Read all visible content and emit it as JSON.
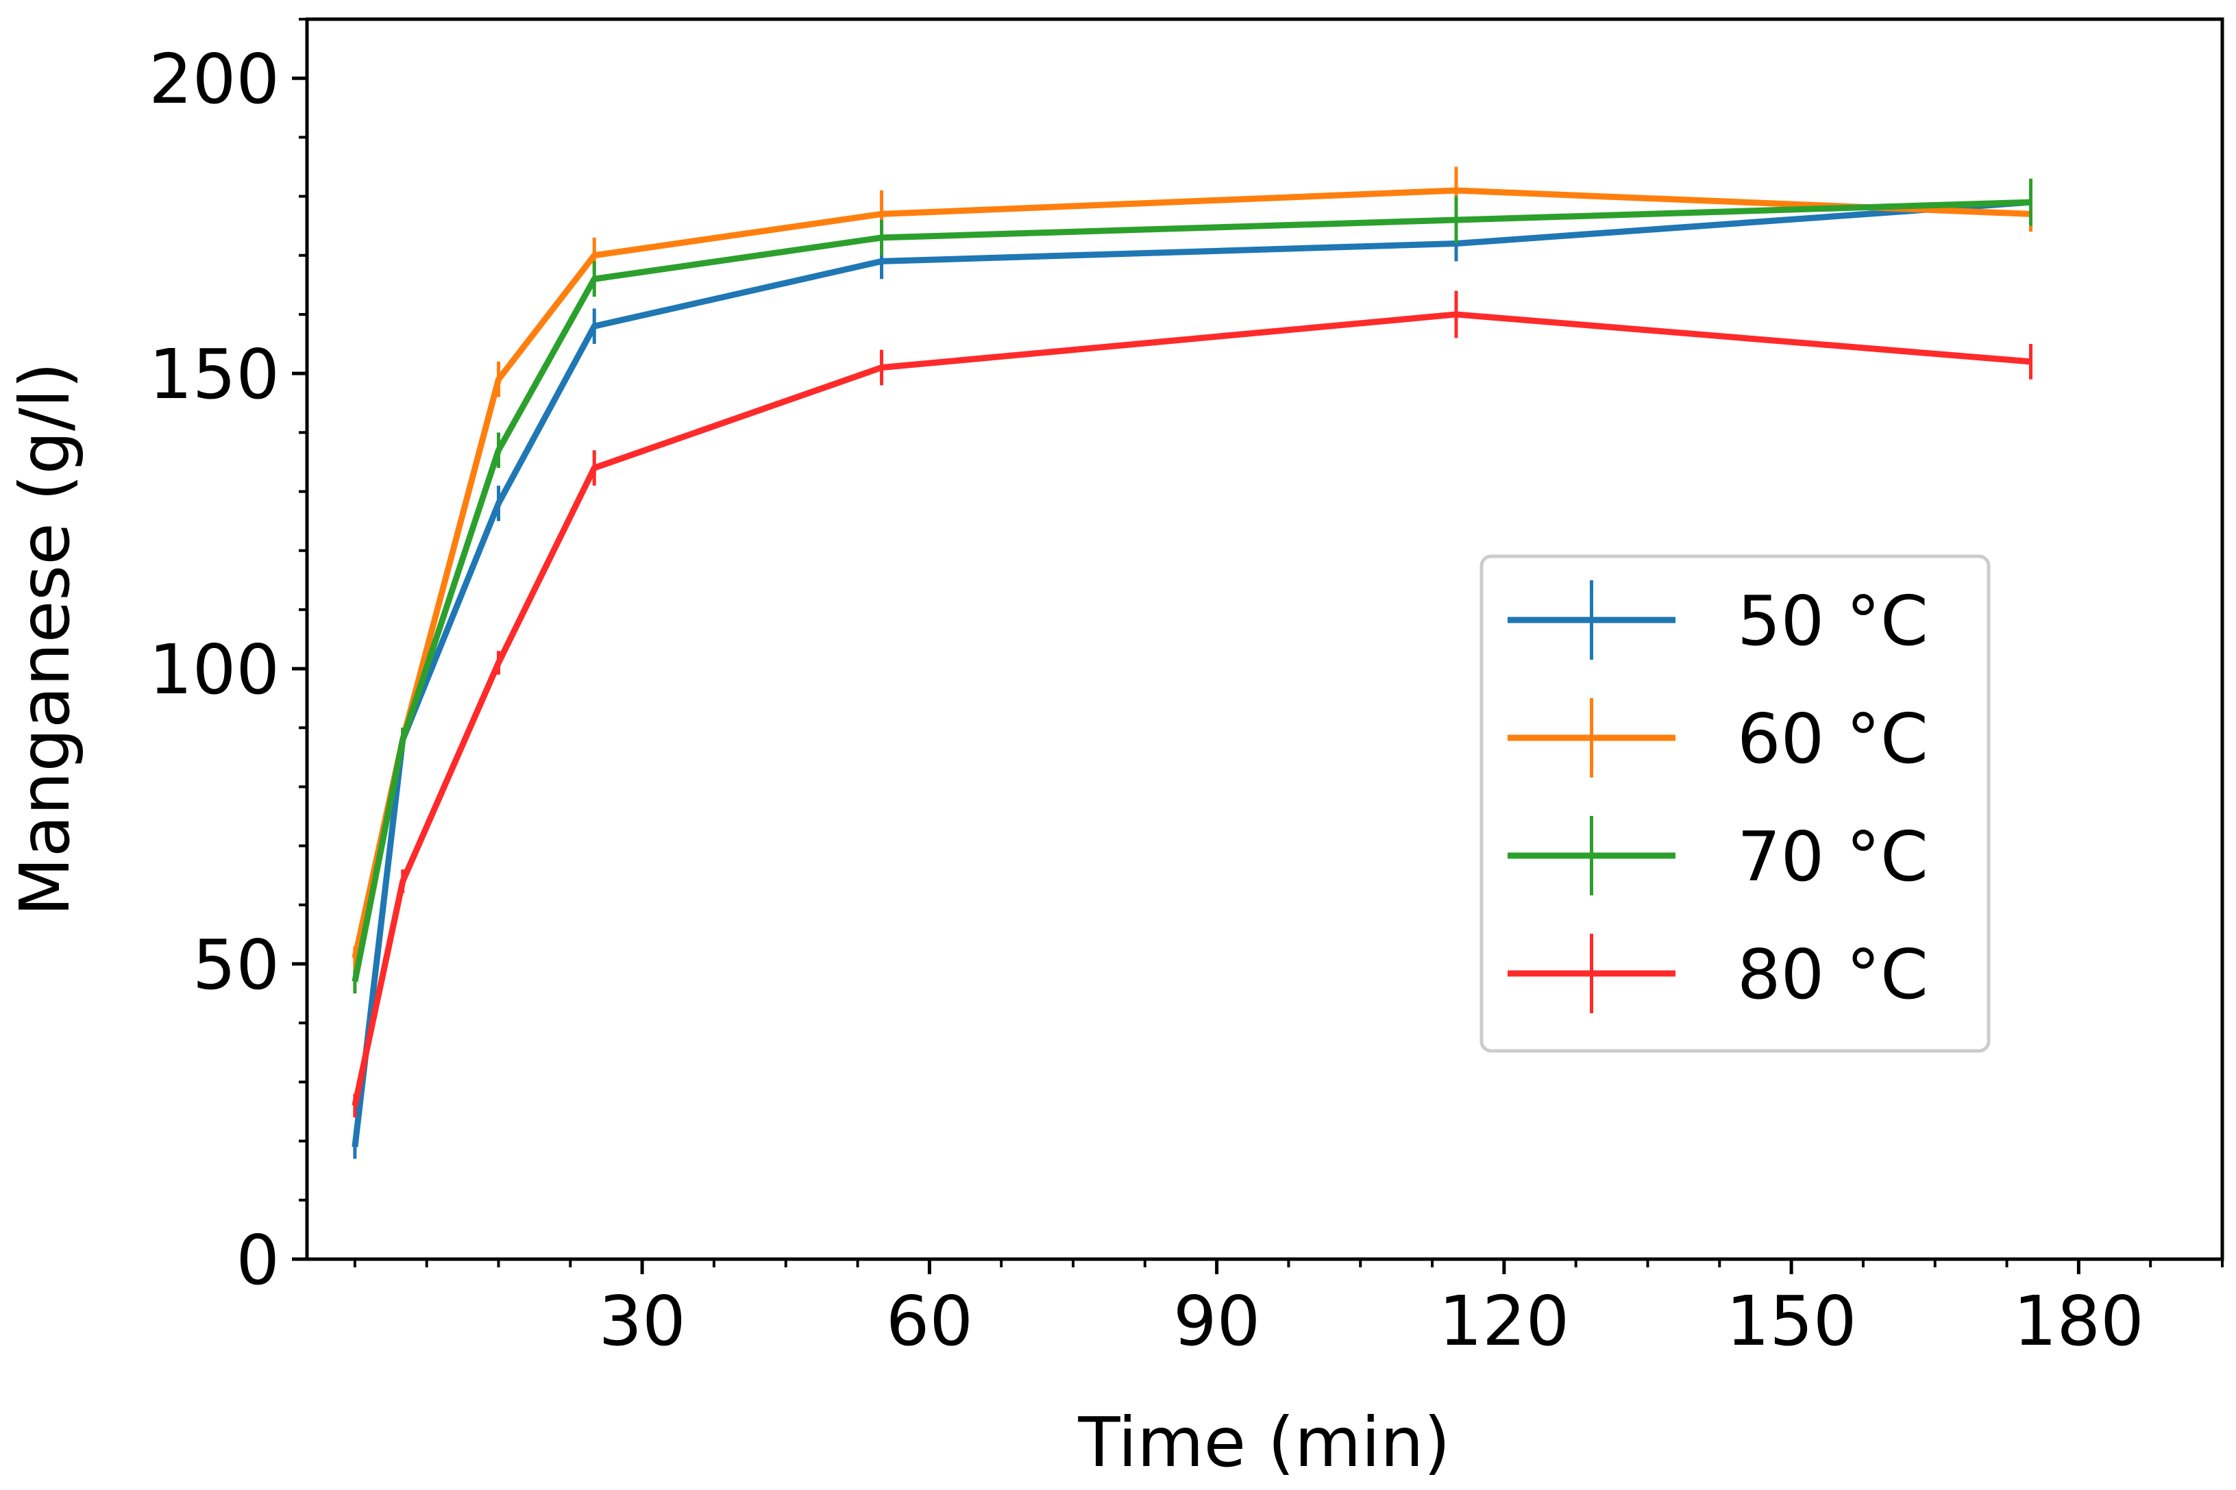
{
  "chart_data": {
    "type": "line",
    "title": "",
    "xlabel": "Time  (min)",
    "ylabel": "Manganese  (g/l)",
    "xlim": [
      -5,
      195
    ],
    "ylim": [
      0,
      210
    ],
    "xticks": [
      30,
      60,
      90,
      120,
      150,
      180
    ],
    "yticks": [
      0,
      50,
      100,
      150,
      200
    ],
    "xminor_step": 7.5,
    "yminor_step": 10,
    "grid": false,
    "legend_position": "center-right",
    "x": [
      0,
      5,
      15,
      25,
      55,
      115,
      175
    ],
    "series": [
      {
        "name": "50 °C",
        "color": "#1f77b4",
        "values": [
          19,
          88,
          128,
          158,
          169,
          172,
          179
        ],
        "errors": [
          2,
          2,
          3,
          3,
          3,
          3,
          2
        ]
      },
      {
        "name": "60 °C",
        "color": "#ff7f0e",
        "values": [
          51,
          88,
          149,
          170,
          177,
          181,
          177
        ],
        "errors": [
          2,
          2,
          3,
          3,
          4,
          4,
          3
        ]
      },
      {
        "name": "70 °C",
        "color": "#2ca02c",
        "values": [
          47,
          88,
          137,
          166,
          173,
          176,
          179
        ],
        "errors": [
          2,
          2,
          3,
          3,
          3,
          4,
          4
        ]
      },
      {
        "name": "80 °C",
        "color": "#ff2a2a",
        "values": [
          26,
          64,
          101,
          134,
          151,
          160,
          152
        ],
        "errors": [
          2,
          2,
          2,
          3,
          3,
          4,
          3
        ]
      }
    ]
  }
}
